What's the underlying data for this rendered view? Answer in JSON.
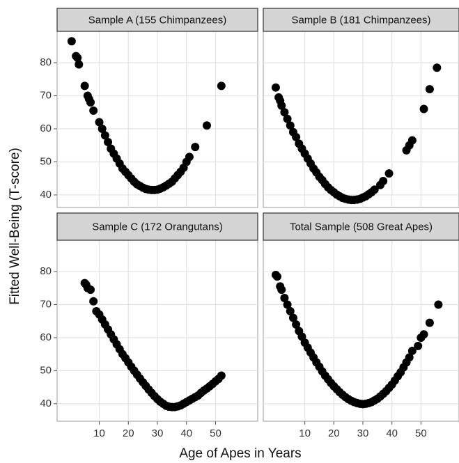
{
  "axis_labels": {
    "x": "Age of Apes in Years",
    "y": "Fitted Well-Being (T-score)"
  },
  "chart_data": [
    {
      "type": "scatter",
      "title": "Sample A (155 Chimpanzees)",
      "color": "#000000",
      "grid": true,
      "x": [
        0.5,
        2,
        2.5,
        3,
        5,
        6,
        6.5,
        7,
        8,
        10,
        11,
        12,
        13,
        14,
        15,
        16,
        17,
        18,
        19,
        20,
        21,
        22,
        23,
        24,
        25,
        26,
        27,
        28,
        29,
        30,
        31,
        32,
        33,
        34,
        35,
        36,
        37,
        38,
        39,
        40,
        41,
        43,
        47,
        52
      ],
      "y": [
        86.5,
        82,
        81.5,
        79.5,
        73,
        70,
        69,
        68,
        65.5,
        62,
        60,
        58,
        56,
        54,
        52.5,
        51,
        49.5,
        48,
        47,
        46,
        45,
        44,
        43.2,
        42.7,
        42.2,
        41.8,
        41.6,
        41.5,
        41.5,
        41.6,
        41.9,
        42.3,
        42.8,
        43.4,
        44,
        45,
        46,
        47,
        48.2,
        50,
        51.5,
        54.5,
        61,
        73
      ],
      "xlim": [
        -4.5,
        64.5
      ],
      "ylim": [
        36.2,
        89.5
      ],
      "xticks": [
        10,
        20,
        30,
        40,
        50
      ],
      "yticks": [
        40,
        50,
        60,
        70,
        80
      ]
    },
    {
      "type": "scatter",
      "title": "Sample B (181 Chimpanzees)",
      "color": "#000000",
      "grid": true,
      "x": [
        0,
        1,
        1.5,
        2,
        3,
        4,
        5,
        6,
        7,
        8,
        9,
        10,
        11,
        12,
        13,
        14,
        15,
        16,
        17,
        18,
        19,
        20,
        21,
        22,
        23,
        24,
        25,
        26,
        27,
        28,
        29,
        30,
        31,
        32,
        33,
        34,
        36,
        37,
        39,
        45,
        46,
        47,
        51,
        53,
        55.5
      ],
      "y": [
        72.5,
        69.5,
        68.5,
        67,
        65,
        63,
        61,
        59,
        57.5,
        55.5,
        54,
        52.5,
        51,
        49.5,
        48,
        46.8,
        45.5,
        44.5,
        43.3,
        42.3,
        41.5,
        40.8,
        40.1,
        39.6,
        39.1,
        38.8,
        38.6,
        38.5,
        38.5,
        38.6,
        38.8,
        39.2,
        39.6,
        40.2,
        40.8,
        41.6,
        43,
        44.2,
        46.5,
        53.5,
        55,
        56.5,
        66,
        72,
        78.5
      ],
      "xlim": [
        -4.3,
        63.1
      ],
      "ylim": [
        36.2,
        89.5
      ],
      "xticks": [
        10,
        20,
        30,
        40,
        50
      ],
      "yticks": [
        40,
        50,
        60,
        70,
        80
      ]
    },
    {
      "type": "scatter",
      "title": "Sample C (172 Orangutans)",
      "color": "#000000",
      "grid": true,
      "x": [
        5,
        5.5,
        6,
        7,
        8,
        9,
        10,
        11,
        12,
        13,
        14,
        15,
        16,
        17,
        18,
        19,
        20,
        21,
        22,
        23,
        24,
        25,
        26,
        27,
        28,
        29,
        30,
        31,
        32,
        33,
        34,
        35,
        36,
        37,
        38,
        39,
        40,
        41,
        42,
        43,
        44,
        45,
        46,
        47,
        48,
        49,
        50,
        51,
        52
      ],
      "y": [
        76.5,
        76,
        75,
        74.5,
        71,
        68,
        67,
        65.5,
        64,
        62.5,
        61,
        59.5,
        58,
        56.5,
        55,
        53.8,
        52.5,
        51.2,
        50,
        48.8,
        47.6,
        46.5,
        45.4,
        44.3,
        43.3,
        42.3,
        41.4,
        40.6,
        40,
        39.4,
        39.1,
        39,
        39,
        39.2,
        39.5,
        40,
        40.5,
        41,
        41.5,
        42,
        42.5,
        43.3,
        44,
        44.6,
        45.3,
        46,
        46.8,
        47.5,
        48.5
      ],
      "xlim": [
        -4.5,
        64.5
      ],
      "ylim": [
        34.7,
        89.5
      ],
      "xticks": [
        10,
        20,
        30,
        40,
        50
      ],
      "yticks": [
        40,
        50,
        60,
        70,
        80
      ]
    },
    {
      "type": "scatter",
      "title": "Total Sample (508 Great Apes)",
      "color": "#000000",
      "grid": true,
      "x": [
        0,
        0.5,
        1.5,
        2,
        3,
        4,
        5,
        6,
        7,
        8,
        9,
        10,
        11,
        12,
        13,
        14,
        15,
        16,
        17,
        18,
        19,
        20,
        21,
        22,
        23,
        24,
        25,
        26,
        27,
        28,
        29,
        30,
        31,
        32,
        33,
        34,
        35,
        36,
        37,
        38,
        39,
        40,
        41,
        42,
        43,
        44,
        45,
        46,
        47,
        49,
        50,
        51,
        53,
        56
      ],
      "y": [
        79,
        78.5,
        75.5,
        74.5,
        72,
        70,
        68,
        66,
        64,
        62,
        60.3,
        58.5,
        57,
        55.5,
        54,
        52.5,
        51.2,
        49.8,
        48.5,
        47.4,
        46.3,
        45.3,
        44.4,
        43.5,
        42.7,
        42,
        41.4,
        40.9,
        40.5,
        40.2,
        40,
        39.9,
        40,
        40.2,
        40.5,
        41,
        41.5,
        42.2,
        43,
        43.8,
        44.8,
        45.8,
        47,
        48.3,
        49.5,
        51,
        52.5,
        54,
        56,
        57.5,
        60,
        61,
        64.5,
        70
      ],
      "xlim": [
        -4.3,
        63.1
      ],
      "ylim": [
        34.7,
        89.5
      ],
      "xticks": [
        10,
        20,
        30,
        40,
        50
      ],
      "yticks": [
        40,
        50,
        60,
        70,
        80
      ]
    }
  ]
}
